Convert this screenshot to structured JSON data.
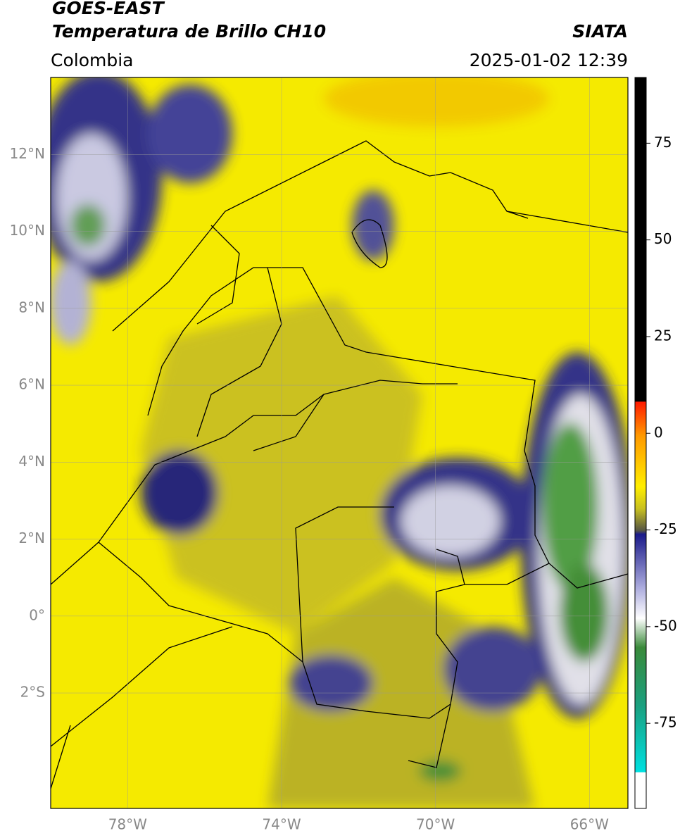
{
  "header": {
    "title": "GOES-EAST",
    "subtitle": "Temperatura de Brillo CH10",
    "source": "SIATA",
    "region": "Colombia",
    "datetime": "2025-01-02 12:39"
  },
  "map": {
    "xlim": [
      -80,
      -65
    ],
    "ylim": [
      -5,
      14
    ],
    "xticks": [
      {
        "value": -78,
        "label": "78°W"
      },
      {
        "value": -74,
        "label": "74°W"
      },
      {
        "value": -70,
        "label": "70°W"
      },
      {
        "value": -66,
        "label": "66°W"
      }
    ],
    "yticks": [
      {
        "value": 12,
        "label": "12°N"
      },
      {
        "value": 10,
        "label": "10°N"
      },
      {
        "value": 8,
        "label": "8°N"
      },
      {
        "value": 6,
        "label": "6°N"
      },
      {
        "value": 4,
        "label": "4°N"
      },
      {
        "value": 2,
        "label": "2°N"
      },
      {
        "value": 0,
        "label": "0°"
      },
      {
        "value": -2,
        "label": "2°S"
      }
    ],
    "grid": true
  },
  "colorbar": {
    "lim": [
      -97,
      92
    ],
    "ticks": [
      75,
      50,
      25,
      0,
      -25,
      -50,
      -75
    ]
  }
}
